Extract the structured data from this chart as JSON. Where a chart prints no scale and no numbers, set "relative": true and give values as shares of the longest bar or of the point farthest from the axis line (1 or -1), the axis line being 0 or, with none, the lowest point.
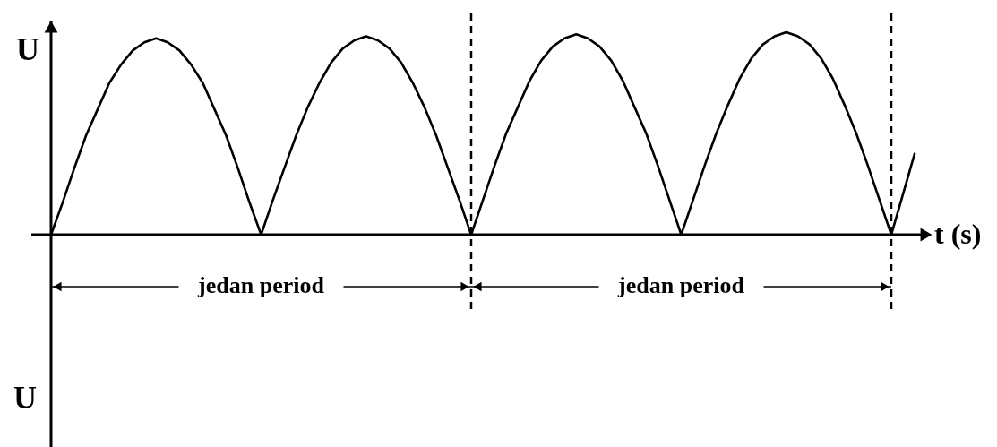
{
  "chart_data": {
    "type": "line",
    "xlabel": "t (s)",
    "ylabel": "U",
    "annotations": [
      "jedan period",
      "jedan period",
      "U"
    ],
    "relative": true,
    "categories": [
      null,
      null,
      null,
      null,
      null,
      null,
      null,
      null,
      null,
      null,
      null,
      null,
      null,
      null,
      null,
      null,
      null,
      null,
      null,
      null,
      null,
      null,
      null,
      null,
      null,
      null,
      null,
      null,
      null,
      null,
      null,
      null,
      null,
      null,
      null,
      null,
      null,
      null,
      null,
      null,
      null,
      null,
      null,
      null,
      null,
      null,
      null,
      null,
      null,
      null,
      null,
      null,
      null,
      null,
      null,
      null,
      null,
      null,
      null,
      null,
      null,
      null,
      null,
      null,
      null,
      null,
      null,
      null,
      null,
      null,
      null,
      null,
      null,
      null,
      null
    ],
    "series": [
      {
        "color": "#000000",
        "values": [
          0,
          0.16,
          0.33,
          0.49,
          0.62,
          0.75,
          0.84,
          0.91,
          0.95,
          0.97,
          0.95,
          0.91,
          0.84,
          0.75,
          0.62,
          0.49,
          0.33,
          0.16,
          0,
          0.17,
          0.33,
          0.49,
          0.63,
          0.75,
          0.85,
          0.92,
          0.96,
          0.98,
          0.96,
          0.92,
          0.85,
          0.75,
          0.63,
          0.49,
          0.33,
          0.17,
          0,
          0.17,
          0.34,
          0.5,
          0.63,
          0.76,
          0.86,
          0.93,
          0.97,
          0.99,
          0.97,
          0.93,
          0.86,
          0.76,
          0.63,
          0.5,
          0.34,
          0.17,
          0,
          0.17,
          0.34,
          0.5,
          0.64,
          0.77,
          0.87,
          0.94,
          0.98,
          1,
          0.98,
          0.94,
          0.87,
          0.77,
          0.64,
          0.5,
          0.34,
          0.17,
          0,
          0.2,
          0.4
        ]
      }
    ]
  }
}
